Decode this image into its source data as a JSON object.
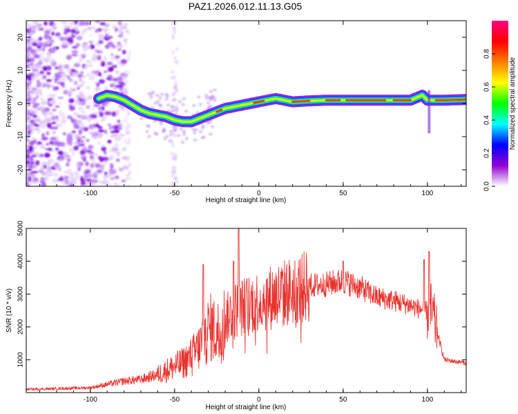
{
  "title": "PAZ1.2026.012.11.13.G05",
  "chart_data": [
    {
      "type": "heatmap",
      "name": "spectrogram",
      "xlabel": "Height of straight line (km)",
      "ylabel": "Frequency (Hz)",
      "xlim": [
        -138,
        123
      ],
      "ylim": [
        -25,
        25
      ],
      "xticks": [
        -100,
        -50,
        0,
        50,
        100
      ],
      "yticks": [
        -20,
        -10,
        0,
        10,
        20
      ],
      "colorbar": {
        "label": "Normalized spectral amplitude",
        "range": [
          0,
          1
        ],
        "ticks": [
          "0.0",
          "0.2",
          "0.4",
          "0.6",
          "0.8"
        ],
        "colors": [
          "#ffffff",
          "#9400d3",
          "#0000ff",
          "#00ffff",
          "#00ff00",
          "#ffff00",
          "#ff7f00",
          "#ff0000",
          "#ff0080"
        ]
      },
      "ridge": {
        "x": [
          -95,
          -90,
          -85,
          -80,
          -75,
          -70,
          -65,
          -60,
          -55,
          -50,
          -45,
          -40,
          -35,
          -30,
          -25,
          -20,
          -15,
          -10,
          -5,
          0,
          5,
          10,
          20,
          30,
          40,
          50,
          60,
          70,
          80,
          90,
          97,
          100,
          110,
          123
        ],
        "y": [
          1.5,
          2.5,
          2.0,
          1.0,
          -0.5,
          -2.0,
          -3.0,
          -3.5,
          -4.0,
          -5.0,
          -5.5,
          -5.5,
          -4.5,
          -3.5,
          -2.5,
          -1.5,
          -1.0,
          -0.5,
          0.0,
          0.5,
          1.0,
          1.5,
          0.5,
          0.8,
          1.0,
          1.0,
          1.0,
          1.0,
          1.0,
          1.0,
          2.5,
          1.0,
          1.0,
          1.2
        ]
      }
    },
    {
      "type": "line",
      "name": "snr",
      "xlabel": "Height of straight line (km)",
      "ylabel": "SNR (10 * v/v)",
      "xlim": [
        -138,
        123
      ],
      "ylim": [
        0,
        5000
      ],
      "xticks": [
        -100,
        -50,
        0,
        50,
        100
      ],
      "yticks": [
        1000,
        2000,
        3000,
        4000,
        5000
      ],
      "color": "#e8322e",
      "trend": {
        "x": [
          -138,
          -120,
          -100,
          -90,
          -80,
          -70,
          -60,
          -50,
          -45,
          -40,
          -35,
          -32,
          -28,
          -25,
          -20,
          -15,
          -10,
          -5,
          0,
          10,
          20,
          30,
          40,
          50,
          60,
          70,
          80,
          90,
          95,
          100,
          103,
          105,
          110,
          123
        ],
        "y": [
          100,
          120,
          150,
          250,
          350,
          400,
          550,
          800,
          900,
          1100,
          1400,
          1800,
          2000,
          1800,
          2200,
          2500,
          2600,
          2700,
          2800,
          2950,
          3100,
          3250,
          3300,
          3400,
          3200,
          2900,
          2800,
          2650,
          2550,
          2500,
          2400,
          2000,
          1000,
          900
        ]
      },
      "spikes": [
        {
          "x": -33,
          "y": 3900
        },
        {
          "x": -12,
          "y": 5000
        },
        {
          "x": -15,
          "y": 4000
        },
        {
          "x": 50,
          "y": 4000
        },
        {
          "x": 101,
          "y": 4300
        },
        {
          "x": 98,
          "y": 4050
        }
      ]
    }
  ]
}
